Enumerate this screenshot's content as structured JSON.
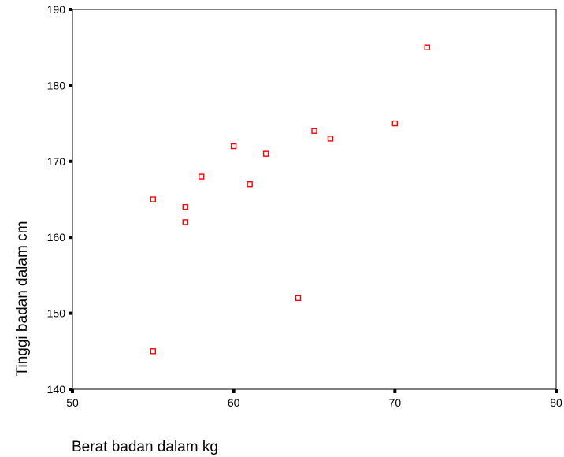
{
  "chart_data": {
    "type": "scatter",
    "title": "",
    "xlabel": "Berat badan dalam kg",
    "ylabel": "Tinggi badan dalam cm",
    "xlim": [
      50,
      80
    ],
    "ylim": [
      140,
      190
    ],
    "x_ticks": [
      "50",
      "60",
      "70",
      "80"
    ],
    "y_ticks": [
      "140",
      "150",
      "160",
      "170",
      "180",
      "190"
    ],
    "grid": false,
    "legend": "none",
    "marker": "hollow-square",
    "marker_color": "#ff0000",
    "series": [
      {
        "points": [
          {
            "x": 55,
            "y": 145
          },
          {
            "x": 55,
            "y": 165
          },
          {
            "x": 57,
            "y": 162
          },
          {
            "x": 57,
            "y": 164
          },
          {
            "x": 58,
            "y": 168
          },
          {
            "x": 60,
            "y": 172
          },
          {
            "x": 61,
            "y": 167
          },
          {
            "x": 62,
            "y": 171
          },
          {
            "x": 64,
            "y": 152
          },
          {
            "x": 65,
            "y": 174
          },
          {
            "x": 66,
            "y": 173
          },
          {
            "x": 70,
            "y": 175
          },
          {
            "x": 72,
            "y": 185
          }
        ]
      }
    ]
  }
}
